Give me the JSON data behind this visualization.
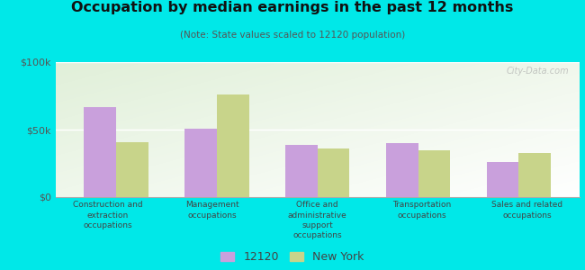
{
  "title": "Occupation by median earnings in the past 12 months",
  "subtitle": "(Note: State values scaled to 12120 population)",
  "categories": [
    "Construction and\nextraction\noccupations",
    "Management\noccupations",
    "Office and\nadministrative\nsupport\noccupations",
    "Transportation\noccupations",
    "Sales and related\noccupations"
  ],
  "values_12120": [
    67000,
    51000,
    39000,
    40000,
    26000
  ],
  "values_ny": [
    41000,
    76000,
    36000,
    35000,
    33000
  ],
  "color_12120": "#c9a0dc",
  "color_ny": "#c8d48a",
  "background_color": "#00e8e8",
  "ylim": [
    0,
    100000
  ],
  "ytick_labels": [
    "$0",
    "$50k",
    "$100k"
  ],
  "ytick_values": [
    0,
    50000,
    100000
  ],
  "watermark": "City-Data.com",
  "legend_labels": [
    "12120",
    "New York"
  ],
  "bar_width": 0.32,
  "grid_color": "#ffffff",
  "spine_color": "#aaaaaa",
  "tick_color": "#555555",
  "label_color": "#444444",
  "title_color": "#111111",
  "subtitle_color": "#555555"
}
